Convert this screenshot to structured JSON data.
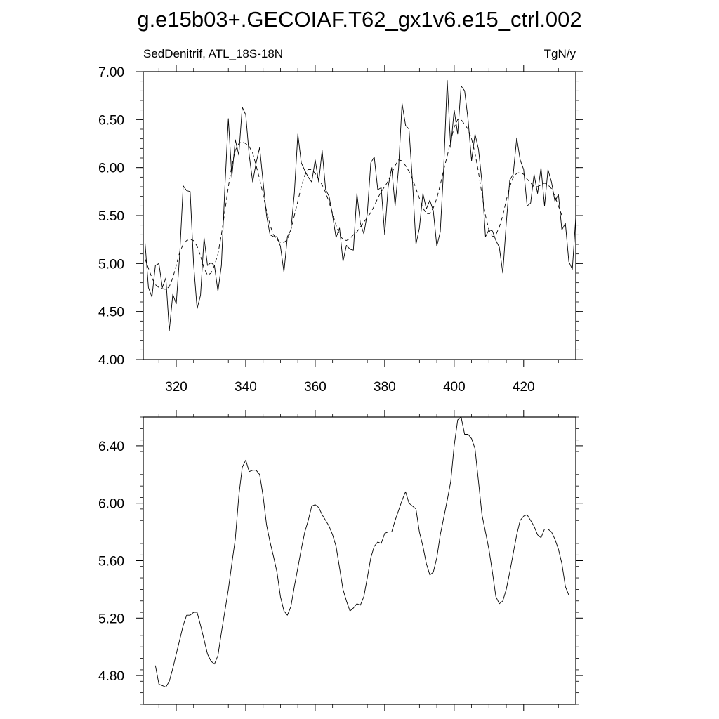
{
  "title": "g.e15b03+.GECOIAF.T62_gx1v6.e15_ctrl.002",
  "chart_data": [
    {
      "type": "line",
      "subtitle_left": "SedDenitrif, ATL_18S-18N",
      "subtitle_right": "TgN/y",
      "xlim": [
        310.5,
        435
      ],
      "ylim": [
        4.0,
        7.0
      ],
      "xticks": [
        320,
        340,
        360,
        380,
        400,
        420
      ],
      "xtick_labels": [
        "320",
        "340",
        "360",
        "380",
        "400",
        "420"
      ],
      "yticks": [
        4.0,
        4.5,
        5.0,
        5.5,
        6.0,
        6.5,
        7.0
      ],
      "ytick_labels": [
        "4.00",
        "4.50",
        "5.00",
        "5.50",
        "6.00",
        "6.50",
        "7.00"
      ],
      "grid": false,
      "series": [
        {
          "style": "solid",
          "x_start": 311,
          "x_step": 1,
          "values": [
            5.22,
            4.75,
            4.65,
            4.98,
            5.0,
            4.75,
            4.85,
            4.3,
            4.68,
            4.58,
            5.1,
            5.81,
            5.76,
            5.75,
            5.0,
            4.53,
            4.67,
            5.27,
            4.98,
            5.01,
            4.98,
            4.71,
            4.98,
            5.8,
            6.51,
            5.9,
            6.29,
            6.13,
            6.63,
            6.55,
            6.13,
            5.85,
            6.05,
            6.21,
            5.85,
            5.5,
            5.3,
            5.28,
            5.28,
            5.18,
            4.91,
            5.28,
            5.35,
            5.73,
            6.35,
            6.05,
            5.97,
            5.9,
            5.85,
            6.08,
            5.85,
            6.18,
            5.77,
            5.7,
            5.5,
            5.27,
            5.37,
            5.02,
            5.19,
            5.15,
            5.14,
            5.73,
            5.42,
            5.31,
            5.52,
            6.05,
            6.11,
            5.77,
            5.79,
            5.3,
            5.8,
            6.0,
            5.6,
            6.0,
            6.67,
            6.44,
            6.4,
            5.85,
            5.2,
            5.37,
            5.73,
            5.57,
            5.66,
            5.55,
            5.18,
            5.33,
            6.01,
            6.91,
            6.21,
            6.6,
            6.35,
            6.85,
            6.8,
            6.5,
            6.07,
            6.35,
            6.19,
            5.85,
            5.28,
            5.35,
            5.34,
            5.24,
            5.17,
            4.9,
            5.42,
            5.87,
            5.93,
            6.31,
            6.08,
            5.98,
            5.6,
            5.63,
            5.93,
            5.73,
            6.0,
            5.6,
            5.98,
            5.85,
            5.65,
            5.72,
            5.35,
            5.42,
            5.02,
            4.94,
            5.48
          ]
        },
        {
          "style": "dashed",
          "x_start": 311,
          "x_step": 1,
          "values": [
            5.05,
            4.95,
            4.85,
            4.78,
            4.75,
            4.74,
            4.73,
            4.76,
            4.85,
            4.98,
            5.12,
            5.2,
            5.24,
            5.25,
            5.24,
            5.18,
            5.08,
            4.95,
            4.88,
            4.9,
            4.98,
            5.1,
            5.3,
            5.55,
            5.8,
            6.02,
            6.18,
            6.25,
            6.27,
            6.25,
            6.22,
            6.15,
            6.02,
            5.88,
            5.72,
            5.55,
            5.4,
            5.3,
            5.25,
            5.22,
            5.22,
            5.25,
            5.35,
            5.5,
            5.65,
            5.8,
            5.92,
            5.98,
            5.98,
            5.94,
            5.88,
            5.82,
            5.74,
            5.64,
            5.52,
            5.4,
            5.3,
            5.25,
            5.24,
            5.26,
            5.3,
            5.33,
            5.38,
            5.43,
            5.48,
            5.53,
            5.6,
            5.68,
            5.75,
            5.8,
            5.86,
            5.94,
            6.02,
            6.08,
            6.07,
            6.02,
            5.96,
            5.88,
            5.78,
            5.68,
            5.58,
            5.52,
            5.52,
            5.58,
            5.68,
            5.82,
            5.98,
            6.12,
            6.28,
            6.42,
            6.5,
            6.5,
            6.45,
            6.4,
            6.3,
            6.15,
            5.95,
            5.72,
            5.5,
            5.35,
            5.28,
            5.3,
            5.38,
            5.5,
            5.66,
            5.8,
            5.9,
            5.94,
            5.95,
            5.93,
            5.88,
            5.84,
            5.8,
            5.8,
            5.82,
            5.84,
            5.82,
            5.78,
            5.7,
            5.6,
            5.5
          ]
        }
      ]
    },
    {
      "type": "line",
      "xlim": [
        310.5,
        435
      ],
      "ylim": [
        4.6,
        6.6
      ],
      "xticks": [
        320,
        340,
        360,
        380,
        400,
        420
      ],
      "yticks": [
        4.8,
        5.2,
        5.6,
        6.0,
        6.4
      ],
      "ytick_labels": [
        "4.80",
        "5.20",
        "5.60",
        "6.00",
        "6.40"
      ],
      "grid": false,
      "series": [
        {
          "style": "solid",
          "x_start": 314,
          "x_step": 1,
          "values": [
            4.87,
            4.74,
            4.73,
            4.72,
            4.76,
            4.85,
            4.95,
            5.05,
            5.15,
            5.22,
            5.22,
            5.24,
            5.24,
            5.15,
            5.05,
            4.95,
            4.9,
            4.88,
            4.94,
            5.1,
            5.25,
            5.4,
            5.58,
            5.75,
            6.05,
            6.25,
            6.3,
            6.22,
            6.23,
            6.23,
            6.2,
            6.05,
            5.85,
            5.73,
            5.63,
            5.52,
            5.35,
            5.25,
            5.22,
            5.28,
            5.42,
            5.55,
            5.68,
            5.8,
            5.88,
            5.98,
            5.99,
            5.97,
            5.92,
            5.88,
            5.84,
            5.78,
            5.7,
            5.55,
            5.4,
            5.32,
            5.25,
            5.27,
            5.3,
            5.29,
            5.35,
            5.48,
            5.62,
            5.7,
            5.73,
            5.72,
            5.79,
            5.8,
            5.8,
            5.88,
            5.95,
            6.02,
            6.08,
            6.0,
            5.98,
            5.96,
            5.8,
            5.7,
            5.58,
            5.5,
            5.52,
            5.62,
            5.78,
            5.9,
            6.02,
            6.15,
            6.4,
            6.58,
            6.6,
            6.48,
            6.48,
            6.45,
            6.38,
            6.15,
            5.92,
            5.8,
            5.68,
            5.52,
            5.35,
            5.3,
            5.32,
            5.4,
            5.52,
            5.65,
            5.78,
            5.88,
            5.91,
            5.92,
            5.88,
            5.84,
            5.78,
            5.76,
            5.82,
            5.82,
            5.8,
            5.75,
            5.68,
            5.58,
            5.42,
            5.36
          ]
        }
      ]
    }
  ]
}
